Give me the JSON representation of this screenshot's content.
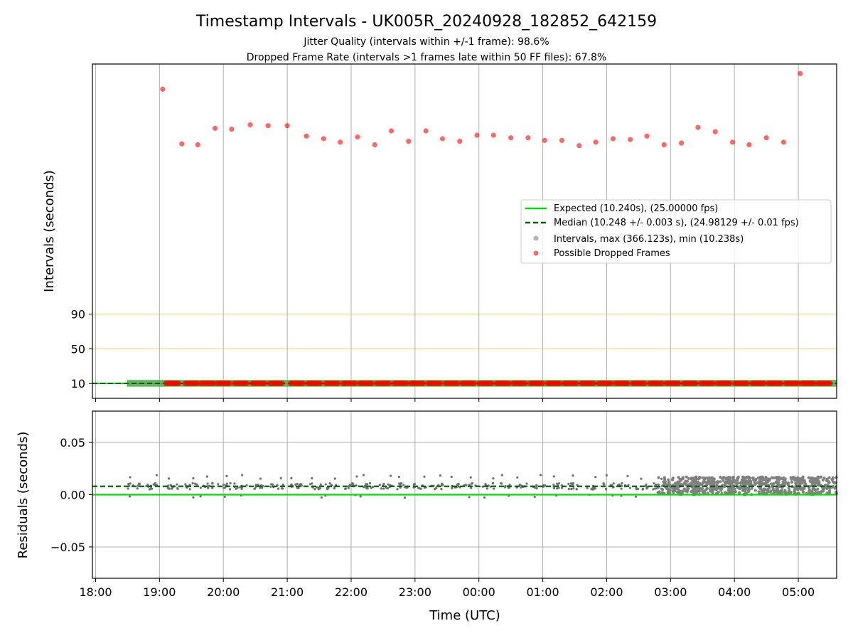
{
  "title": "Timestamp Intervals - UK005R_20240928_182852_642159",
  "subtitle_line1": "Jitter Quality (intervals within +/-1 frame): 98.6%",
  "subtitle_line2": "Dropped Frame Rate (intervals >1 frames late within 50 FF files): 67.8%",
  "colors": {
    "expected": "#00e000",
    "median": "#006400",
    "intervals": "#808080",
    "dropped": "#ff0000",
    "threshold": "#ffa500",
    "grid": "#b0b0b0"
  },
  "chart_data": [
    {
      "type": "scatter",
      "panel": "top",
      "title": "Timestamp Intervals - UK005R_20240928_182852_642159",
      "ylabel": "Intervals (seconds)",
      "xlabel": "",
      "yticks": [
        10,
        50,
        90
      ],
      "xlim": [
        17.95,
        29.6
      ],
      "ylim_note": "axis spans roughly -7 to 378 seconds",
      "ylim": [
        -7,
        378
      ],
      "grid": "vertical",
      "threshold_lines": [
        50,
        90
      ],
      "legend_position": "center-right",
      "legend": [
        "Expected (10.240s), (25.00000 fps)",
        "Median (10.248 +/- 0.003 s), (24.98129 +/- 0.01 fps)",
        "Intervals, max (366.123s), min (10.238s)",
        "Possible Dropped Frames"
      ],
      "series": [
        {
          "name": "Expected (10.240s), (25.00000 fps)",
          "kind": "hline",
          "value": 10.24
        },
        {
          "name": "Median (10.248 +/- 0.003 s), (24.98129 +/- 0.01 fps)",
          "kind": "hline",
          "value": 10.248
        },
        {
          "name": "Intervals, max (366.123s), min (10.238s)",
          "kind": "band",
          "x_range": [
            18.5,
            29.6
          ],
          "value": 10.24
        },
        {
          "name": "Possible Dropped Frames",
          "kind": "scatter",
          "points": [
            [
              19.05,
              349
            ],
            [
              19.35,
              286
            ],
            [
              19.6,
              285
            ],
            [
              19.87,
              304
            ],
            [
              20.13,
              303
            ],
            [
              20.42,
              308
            ],
            [
              20.7,
              307
            ],
            [
              21.0,
              307
            ],
            [
              21.3,
              295
            ],
            [
              21.57,
              292
            ],
            [
              21.83,
              288
            ],
            [
              22.1,
              294
            ],
            [
              22.37,
              285
            ],
            [
              22.63,
              301
            ],
            [
              22.9,
              289
            ],
            [
              23.17,
              301
            ],
            [
              23.43,
              292
            ],
            [
              23.7,
              289
            ],
            [
              23.97,
              296
            ],
            [
              24.23,
              296
            ],
            [
              24.5,
              293
            ],
            [
              24.77,
              293
            ],
            [
              25.03,
              290
            ],
            [
              25.3,
              290
            ],
            [
              25.57,
              284
            ],
            [
              25.83,
              288
            ],
            [
              26.1,
              292
            ],
            [
              26.37,
              291
            ],
            [
              26.63,
              295
            ],
            [
              26.9,
              285
            ],
            [
              27.17,
              287
            ],
            [
              27.43,
              305
            ],
            [
              27.7,
              300
            ],
            [
              27.97,
              288
            ],
            [
              28.23,
              285
            ],
            [
              28.5,
              293
            ],
            [
              28.77,
              288
            ],
            [
              29.03,
              367
            ]
          ],
          "baseline_clusters": {
            "value": 10.24,
            "centers": [
              19.2,
              19.5,
              19.75,
              20.0,
              20.27,
              20.55,
              20.82,
              21.15,
              21.42,
              21.7,
              21.97,
              22.23,
              22.5,
              22.77,
              23.03,
              23.3,
              23.57,
              23.83,
              24.1,
              24.37,
              24.63,
              24.9,
              25.17,
              25.43,
              25.7,
              25.97,
              26.23,
              26.5,
              26.77,
              27.03,
              27.3,
              27.57,
              27.83,
              28.1,
              28.37,
              28.63,
              28.9,
              29.15,
              29.4
            ]
          }
        }
      ]
    },
    {
      "type": "scatter",
      "panel": "bottom",
      "ylabel": "Residuals (seconds)",
      "xlabel": "Time (UTC)",
      "ylim": [
        -0.08,
        0.08
      ],
      "yticks": [
        -0.05,
        0.0,
        0.05
      ],
      "ytick_labels": [
        "−0.05",
        "0.00",
        "0.05"
      ],
      "xlim": [
        17.95,
        29.6
      ],
      "xticks": [
        18,
        19,
        20,
        21,
        22,
        23,
        24,
        25,
        26,
        27,
        28,
        29
      ],
      "xtick_labels": [
        "18:00",
        "19:00",
        "20:00",
        "21:00",
        "22:00",
        "23:00",
        "00:00",
        "01:00",
        "02:00",
        "03:00",
        "04:00",
        "05:00"
      ],
      "grid": "both",
      "series": [
        {
          "name": "Expected",
          "kind": "hline",
          "value": 0.0
        },
        {
          "name": "Median",
          "kind": "hline",
          "value": 0.008
        },
        {
          "name": "Residuals",
          "kind": "clusters",
          "early_centers": [
            18.55,
            18.85,
            19.15,
            19.45,
            19.7,
            19.97,
            20.23,
            20.5,
            20.8,
            21.1,
            21.4,
            21.65,
            21.95,
            22.2,
            22.5,
            22.77,
            23.03,
            23.3,
            23.57,
            23.83,
            24.1,
            24.37,
            24.63,
            24.9,
            25.17,
            25.43,
            25.7,
            25.97,
            26.23,
            26.5,
            26.77
          ],
          "early_range": [
            -0.003,
            0.019
          ],
          "late_centers": [
            27.0,
            27.27,
            27.53,
            27.8,
            28.07,
            28.33,
            28.6,
            28.87,
            29.13,
            29.4
          ],
          "late_range": [
            0.0,
            0.017
          ]
        }
      ]
    }
  ]
}
